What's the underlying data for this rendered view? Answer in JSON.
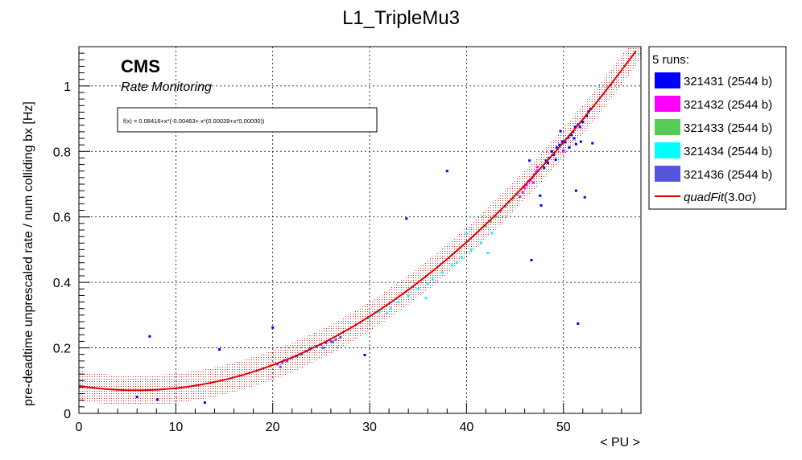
{
  "chart_data": {
    "type": "scatter",
    "title": "L1_TripleMu3",
    "xlabel": "< PU >",
    "ylabel": "pre-deadtime unprescaled rate / num colliding bx [Hz]",
    "xlim": [
      0,
      58
    ],
    "ylim": [
      0,
      1.12
    ],
    "xticks": [
      0,
      10,
      20,
      30,
      40,
      50
    ],
    "yticks": [
      0,
      0.2,
      0.4,
      0.6,
      0.8,
      1
    ],
    "grid": true,
    "legend_position": "right",
    "cms_label": "CMS",
    "cms_sublabel": "Rate Monitoring",
    "fit_formula": "f(x) = 0.08416+x*(-0.00463+ x*(0.00039+x*0.00000))",
    "fit": {
      "a": 0.08416,
      "b": -0.00463,
      "c": 0.00039,
      "band": 0.045,
      "color": "#e00000",
      "x_range": [
        0,
        58
      ]
    },
    "legend_title": "5 runs:",
    "series": [
      {
        "name": "321431 (2544 b)",
        "color": "#0000ff",
        "points": [
          [
            7.3,
            0.235
          ],
          [
            14.5,
            0.195
          ],
          [
            13.0,
            0.033
          ],
          [
            8.1,
            0.042
          ],
          [
            6,
            0.05
          ],
          [
            20,
            0.262
          ],
          [
            29.5,
            0.178
          ],
          [
            33.8,
            0.595
          ],
          [
            38,
            0.74
          ],
          [
            46.5,
            0.772
          ],
          [
            46.7,
            0.468
          ],
          [
            47.7,
            0.635
          ],
          [
            49.7,
            0.862
          ],
          [
            51.3,
            0.68
          ],
          [
            51.5,
            0.274
          ],
          [
            52.2,
            0.66
          ],
          [
            52.8,
            0.93
          ],
          [
            53.0,
            0.825
          ],
          [
            47.6,
            0.665
          ],
          [
            48,
            0.75
          ],
          [
            48.2,
            0.772
          ],
          [
            48.5,
            0.78
          ],
          [
            48.8,
            0.8
          ],
          [
            49,
            0.79
          ],
          [
            49.3,
            0.812
          ],
          [
            49.6,
            0.82
          ],
          [
            49.9,
            0.83
          ],
          [
            50.2,
            0.828
          ],
          [
            50.5,
            0.842
          ],
          [
            50.8,
            0.85
          ],
          [
            51,
            0.86
          ],
          [
            51.2,
            0.875
          ],
          [
            51.5,
            0.882
          ],
          [
            51.7,
            0.875
          ],
          [
            52,
            0.89
          ],
          [
            52.4,
            0.908
          ],
          [
            52.6,
            0.922
          ],
          [
            50,
            0.802
          ],
          [
            50.6,
            0.812
          ],
          [
            51.3,
            0.822
          ],
          [
            48.4,
            0.765
          ],
          [
            49.2,
            0.775
          ],
          [
            51.8,
            0.83
          ],
          [
            51.1,
            0.84
          ]
        ]
      },
      {
        "name": "321432 (2544 b)",
        "color": "#ff00ff",
        "points": [
          [
            45.5,
            0.662
          ],
          [
            45.8,
            0.675
          ],
          [
            46,
            0.688
          ],
          [
            46.2,
            0.698
          ],
          [
            46.4,
            0.708
          ],
          [
            46.6,
            0.712
          ],
          [
            46.8,
            0.72
          ],
          [
            47.0,
            0.73
          ],
          [
            47.2,
            0.738
          ],
          [
            47.4,
            0.742
          ],
          [
            46.9,
            0.705
          ],
          [
            47.3,
            0.752
          ],
          [
            50.0,
            0.8
          ]
        ]
      },
      {
        "name": "321433 (2544 b)",
        "color": "#55cc55",
        "points": [
          [
            42,
            0.57
          ],
          [
            42.5,
            0.585
          ],
          [
            43,
            0.6
          ],
          [
            43.5,
            0.618
          ],
          [
            44,
            0.632
          ],
          [
            44.4,
            0.645
          ],
          [
            44.8,
            0.656
          ],
          [
            45.2,
            0.668
          ]
        ]
      },
      {
        "name": "321434 (2544 b)",
        "color": "#00ffff",
        "points": [
          [
            32.2,
            0.32
          ],
          [
            33,
            0.34
          ],
          [
            34,
            0.36
          ],
          [
            35,
            0.38
          ],
          [
            35.8,
            0.352
          ],
          [
            36.5,
            0.41
          ],
          [
            37.5,
            0.43
          ],
          [
            38.5,
            0.452
          ],
          [
            39.5,
            0.475
          ],
          [
            40,
            0.55
          ],
          [
            40.5,
            0.5
          ],
          [
            41.5,
            0.52
          ],
          [
            42.2,
            0.49
          ],
          [
            42.6,
            0.55
          ],
          [
            31,
            0.31
          ],
          [
            30,
            0.29
          ],
          [
            31.8,
            0.305
          ],
          [
            36,
            0.395
          ],
          [
            39,
            0.46
          ]
        ]
      },
      {
        "name": "321436 (2544 b)",
        "color": "#5555dd",
        "points": [
          [
            20.5,
            0.15
          ],
          [
            21,
            0.155
          ],
          [
            21.5,
            0.16
          ],
          [
            22,
            0.17
          ],
          [
            22.5,
            0.175
          ],
          [
            23,
            0.18
          ],
          [
            23.5,
            0.19
          ],
          [
            24,
            0.2
          ],
          [
            24.5,
            0.205
          ],
          [
            25,
            0.21
          ],
          [
            25.5,
            0.215
          ],
          [
            26,
            0.22
          ],
          [
            26.5,
            0.225
          ],
          [
            27,
            0.232
          ],
          [
            21.2,
            0.162
          ],
          [
            23.8,
            0.195
          ],
          [
            25.2,
            0.2
          ],
          [
            26.2,
            0.218
          ],
          [
            20.8,
            0.142
          ]
        ]
      }
    ],
    "fit_legend_label": "quadFit(3.0σ)",
    "fit_legend_name": "quadFit",
    "fit_legend_arg": "(3.0σ)"
  }
}
